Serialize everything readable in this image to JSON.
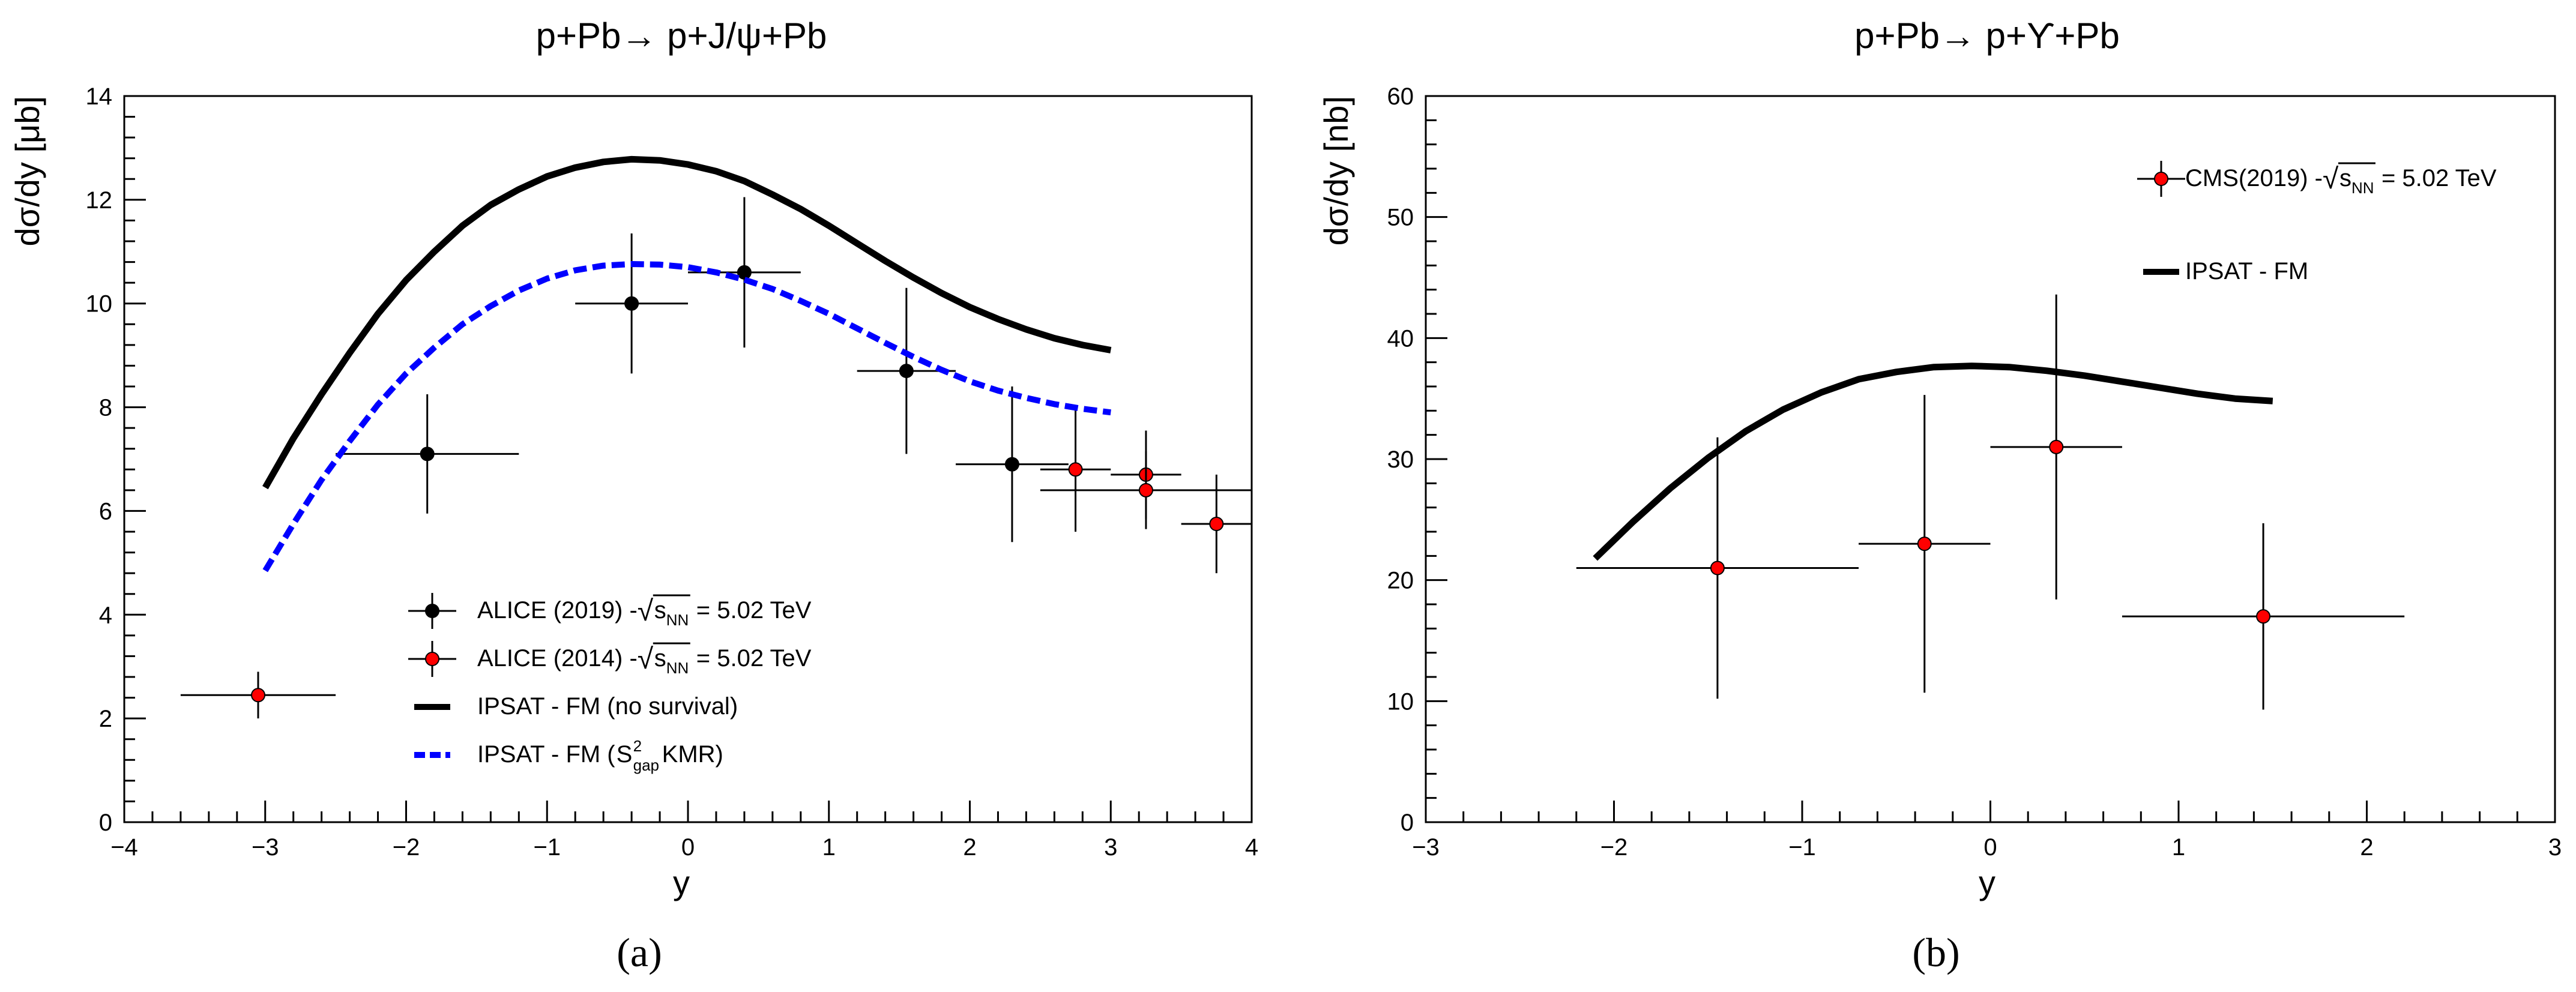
{
  "chart_data": [
    {
      "panel_label": "(a)",
      "type": "scatter",
      "title": "p+Pb→ p+J/ψ+Pb",
      "xlabel": "y",
      "ylabel": "dσ/dy [μb]",
      "xlim": [
        -4,
        4
      ],
      "ylim": [
        0,
        14
      ],
      "x_ticks": [
        -4,
        -3,
        -2,
        -1,
        0,
        1,
        2,
        3,
        4
      ],
      "y_ticks": [
        0,
        2,
        4,
        6,
        8,
        10,
        12,
        14
      ],
      "grid": false,
      "legend_position": "bottom-center",
      "series": [
        {
          "name": "ALICE (2019)",
          "legend_suffix": " - ",
          "energy": "= 5.02 TeV",
          "kind": "errorbar",
          "color": "#000000",
          "points": [
            {
              "x": -1.85,
              "y": 7.1,
              "xerr": 0.65,
              "yerr": 1.15
            },
            {
              "x": -0.4,
              "y": 10.0,
              "xerr": 0.4,
              "yerr": 1.35
            },
            {
              "x": 0.4,
              "y": 10.6,
              "xerr": 0.4,
              "yerr": 1.45
            },
            {
              "x": 1.55,
              "y": 8.7,
              "xerr": 0.35,
              "yerr": 1.6
            },
            {
              "x": 2.3,
              "y": 6.9,
              "xerr": 0.4,
              "yerr": 1.5
            }
          ]
        },
        {
          "name": "ALICE (2014)",
          "legend_suffix": " - ",
          "energy": "= 5.02 TeV",
          "kind": "errorbar",
          "color": "#ff0000",
          "points": [
            {
              "x": -3.05,
              "y": 2.45,
              "xerr": 0.55,
              "yerr": 0.45
            },
            {
              "x": 2.75,
              "y": 6.8,
              "xerr": 0.25,
              "yerr": 1.2
            },
            {
              "x": 3.25,
              "y": 6.7,
              "xerr": 0.25,
              "yerr": 0.85
            },
            {
              "x": 3.25,
              "y": 6.4,
              "xerr": 0.75,
              "yerr": 0.75
            },
            {
              "x": 3.75,
              "y": 5.75,
              "xerr": 0.25,
              "yerr": 0.95
            }
          ]
        },
        {
          "name": "IPSAT - FM (no survival)",
          "kind": "line",
          "color": "#000000",
          "dash": "solid",
          "x": [
            -3.0,
            -2.8,
            -2.6,
            -2.4,
            -2.2,
            -2.0,
            -1.8,
            -1.6,
            -1.4,
            -1.2,
            -1.0,
            -0.8,
            -0.6,
            -0.4,
            -0.2,
            0.0,
            0.2,
            0.4,
            0.6,
            0.8,
            1.0,
            1.2,
            1.4,
            1.6,
            1.8,
            2.0,
            2.2,
            2.4,
            2.6,
            2.8,
            3.0
          ],
          "y": [
            6.45,
            7.4,
            8.25,
            9.05,
            9.8,
            10.45,
            11.0,
            11.5,
            11.9,
            12.2,
            12.45,
            12.62,
            12.73,
            12.78,
            12.76,
            12.68,
            12.55,
            12.36,
            12.1,
            11.82,
            11.5,
            11.16,
            10.82,
            10.5,
            10.2,
            9.93,
            9.7,
            9.5,
            9.33,
            9.2,
            9.1
          ]
        },
        {
          "name": "IPSAT - FM (",
          "name_suffix": " KMR)",
          "kind": "line",
          "color": "#0000ff",
          "dash": "dashed",
          "x": [
            -3.0,
            -2.8,
            -2.6,
            -2.4,
            -2.2,
            -2.0,
            -1.8,
            -1.6,
            -1.4,
            -1.2,
            -1.0,
            -0.8,
            -0.6,
            -0.4,
            -0.2,
            0.0,
            0.2,
            0.4,
            0.6,
            0.8,
            1.0,
            1.2,
            1.4,
            1.6,
            1.8,
            2.0,
            2.2,
            2.4,
            2.6,
            2.8,
            3.0
          ],
          "y": [
            4.85,
            5.75,
            6.6,
            7.35,
            8.05,
            8.65,
            9.15,
            9.6,
            9.95,
            10.25,
            10.48,
            10.64,
            10.73,
            10.76,
            10.75,
            10.7,
            10.6,
            10.46,
            10.28,
            10.05,
            9.8,
            9.52,
            9.24,
            8.97,
            8.72,
            8.5,
            8.32,
            8.18,
            8.06,
            7.97,
            7.9
          ]
        }
      ]
    },
    {
      "panel_label": "(b)",
      "type": "scatter",
      "title": "p+Pb→ p+ϒ+Pb",
      "xlabel": "y",
      "ylabel": "dσ/dy [nb]",
      "xlim": [
        -3,
        3
      ],
      "ylim": [
        0,
        60
      ],
      "x_ticks": [
        -3,
        -2,
        -1,
        0,
        1,
        2,
        3
      ],
      "y_ticks": [
        0,
        10,
        20,
        30,
        40,
        50,
        60
      ],
      "grid": false,
      "legend_position": "top-right",
      "series": [
        {
          "name": "CMS(2019)",
          "legend_suffix": " - ",
          "energy": "= 5.02 TeV",
          "kind": "errorbar",
          "color": "#ff0000",
          "points": [
            {
              "x": -1.45,
              "y": 21,
              "xerr": 0.75,
              "yerr": 10.8
            },
            {
              "x": -0.35,
              "y": 23,
              "xerr": 0.35,
              "yerr": 12.3
            },
            {
              "x": 0.35,
              "y": 31,
              "xerr": 0.35,
              "yerr": 12.6
            },
            {
              "x": 1.45,
              "y": 17,
              "xerr": 0.75,
              "yerr": 7.7
            }
          ]
        },
        {
          "name": "IPSAT - FM",
          "kind": "line",
          "color": "#000000",
          "dash": "solid",
          "x": [
            -2.1,
            -1.9,
            -1.7,
            -1.5,
            -1.3,
            -1.1,
            -0.9,
            -0.7,
            -0.5,
            -0.3,
            -0.1,
            0.1,
            0.3,
            0.5,
            0.7,
            0.9,
            1.1,
            1.3,
            1.5
          ],
          "y": [
            21.8,
            24.8,
            27.6,
            30.1,
            32.3,
            34.1,
            35.5,
            36.6,
            37.2,
            37.6,
            37.7,
            37.6,
            37.3,
            36.9,
            36.4,
            35.9,
            35.4,
            35.0,
            34.8
          ]
        }
      ]
    }
  ],
  "symbols": {
    "sqrt": "√",
    "s": "s",
    "nn": "NN",
    "s_sym": "S",
    "gap": "gap",
    "two": "2"
  }
}
